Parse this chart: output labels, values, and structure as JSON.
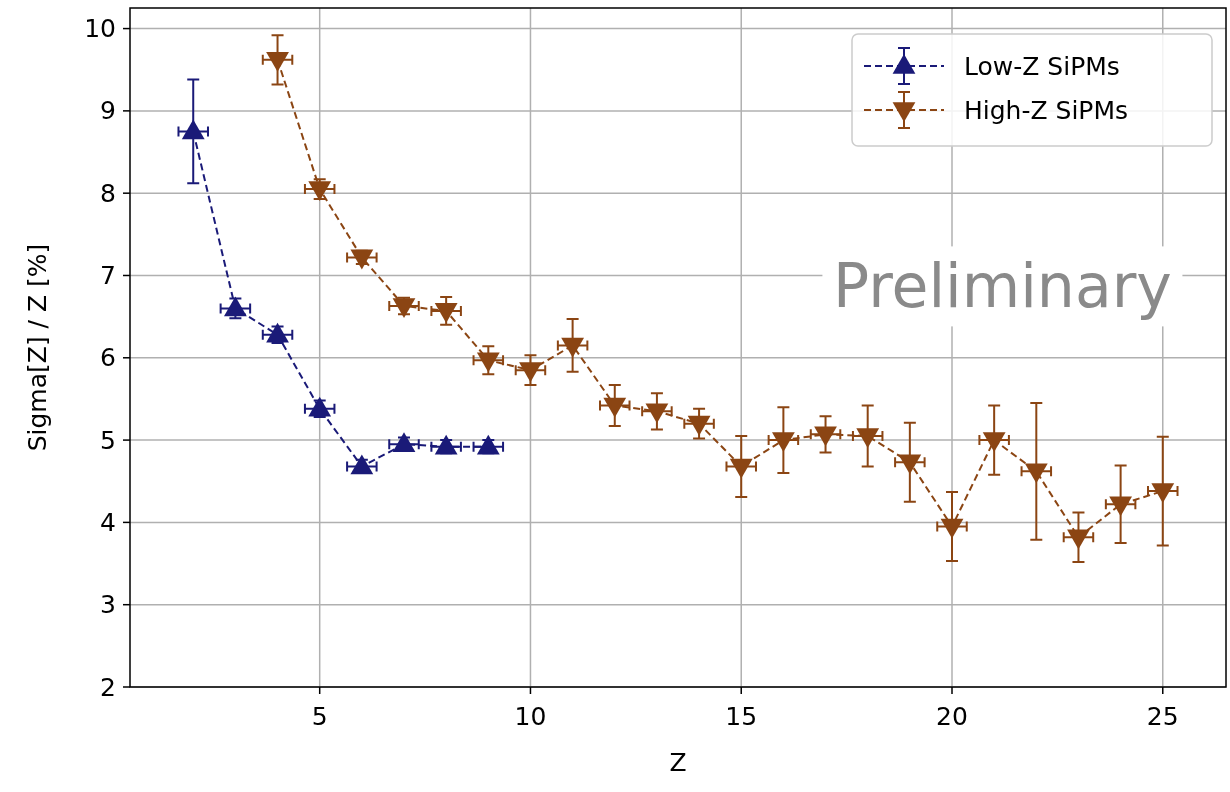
{
  "chart_data": {
    "type": "line",
    "xlabel": "Z",
    "ylabel": "Sigma[Z] / Z [%]",
    "xlim": [
      0.5,
      26.5
    ],
    "xticks": [
      5,
      10,
      15,
      20,
      25
    ],
    "ylim": [
      2,
      10.25
    ],
    "yticks": [
      2,
      3,
      4,
      5,
      6,
      7,
      8,
      9,
      10
    ],
    "grid": true,
    "legend": "top right",
    "line_style": "dashed",
    "annotations": [
      "Preliminary"
    ],
    "series": [
      {
        "name": "Low-Z SiPMs",
        "color": "#1a1a78",
        "marker": "triangle",
        "x": [
          2,
          3,
          4,
          5,
          6,
          7,
          8,
          9
        ],
        "values": [
          8.75,
          6.6,
          6.28,
          5.38,
          4.68,
          4.95,
          4.92,
          4.92
        ],
        "errors": [
          0.63,
          0.12,
          0.1,
          0.1,
          0.08,
          0.08,
          0.08,
          0.08
        ],
        "xerrors": [
          0.35,
          0.35,
          0.35,
          0.35,
          0.35,
          0.35,
          0.35,
          0.35
        ]
      },
      {
        "name": "High-Z SiPMs",
        "color": "#8b4513",
        "marker": "triangle-down",
        "x": [
          4,
          5,
          6,
          7,
          8,
          9,
          10,
          11,
          12,
          13,
          14,
          15,
          16,
          17,
          18,
          19,
          20,
          21,
          22,
          23,
          24,
          25
        ],
        "values": [
          9.62,
          8.05,
          7.22,
          6.63,
          6.57,
          5.97,
          5.85,
          6.15,
          5.42,
          5.35,
          5.2,
          4.68,
          5.0,
          5.07,
          5.05,
          4.73,
          3.95,
          5.0,
          4.62,
          3.82,
          4.22,
          4.38
        ],
        "errors": [
          0.3,
          0.12,
          0.08,
          0.1,
          0.17,
          0.17,
          0.18,
          0.32,
          0.25,
          0.22,
          0.18,
          0.37,
          0.4,
          0.22,
          0.37,
          0.48,
          0.42,
          0.42,
          0.83,
          0.3,
          0.47,
          0.66
        ],
        "xerrors": [
          0.35,
          0.35,
          0.35,
          0.35,
          0.35,
          0.35,
          0.35,
          0.35,
          0.35,
          0.35,
          0.35,
          0.35,
          0.35,
          0.35,
          0.35,
          0.35,
          0.35,
          0.35,
          0.35,
          0.35,
          0.35,
          0.35
        ]
      }
    ]
  }
}
